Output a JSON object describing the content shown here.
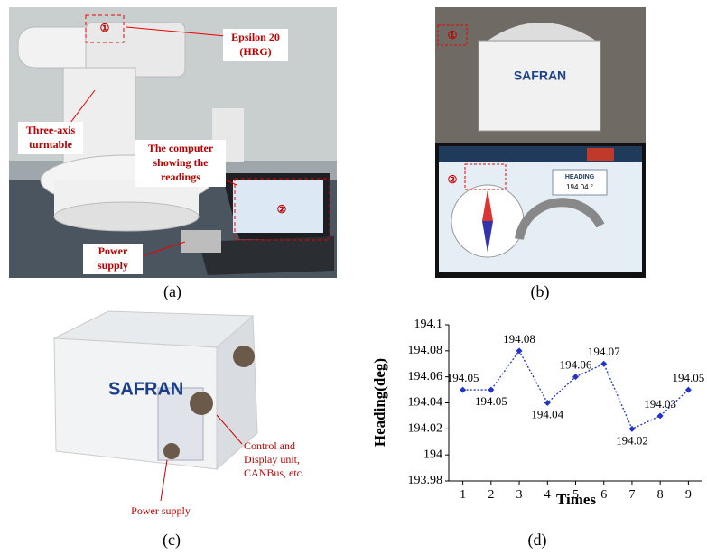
{
  "panel_a": {
    "caption": "(a)",
    "markers": [
      "①",
      "②"
    ],
    "annotations": [
      [
        "Epsilon 20",
        "(HRG)"
      ],
      [
        "Three-axis",
        "turntable"
      ],
      [
        "The computer",
        "showing the",
        "readings"
      ],
      [
        "Power",
        "supply"
      ]
    ]
  },
  "panel_b": {
    "caption": "(b)",
    "markers": [
      "①",
      "②"
    ],
    "brand": "SAFRAN",
    "screen_title": "HEADING",
    "screen_reading": "194.04 °"
  },
  "panel_c": {
    "caption": "(c)",
    "brand": "SAFRAN",
    "annotations": [
      [
        "Control and",
        "Display unit,",
        "CANBus, etc."
      ],
      [
        "Power supply"
      ]
    ]
  },
  "panel_d": {
    "caption": "(d)"
  },
  "chart_data": {
    "type": "line",
    "xlabel": "Times",
    "ylabel": "Heading(deg)",
    "x": [
      1,
      2,
      3,
      4,
      5,
      6,
      7,
      8,
      9
    ],
    "values": [
      194.05,
      194.05,
      194.08,
      194.04,
      194.06,
      194.07,
      194.02,
      194.03,
      194.05
    ],
    "color": "#2233cc",
    "xlim": [
      0.5,
      9.5
    ],
    "xticks": [
      1,
      2,
      3,
      4,
      5,
      6,
      7,
      8,
      9
    ],
    "ylim": [
      193.98,
      194.1
    ],
    "yticks": [
      193.98,
      194,
      194.02,
      194.04,
      194.06,
      194.08,
      194.1
    ]
  }
}
